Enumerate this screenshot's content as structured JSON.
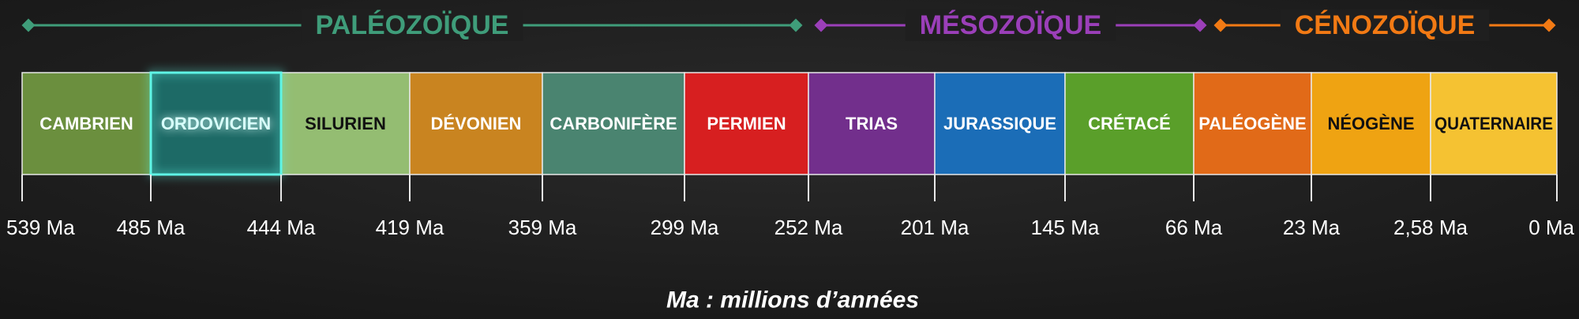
{
  "eras": [
    {
      "label": "PALÉOZOÏQUE"
    },
    {
      "label": "MÉSOZOÏQUE"
    },
    {
      "label": "CÉNOZOÏQUE"
    }
  ],
  "periods": [
    {
      "label": "CAMBRIEN"
    },
    {
      "label": "ORDOVICIEN"
    },
    {
      "label": "SILURIEN"
    },
    {
      "label": "DÉVONIEN"
    },
    {
      "label": "CARBONIFÈRE"
    },
    {
      "label": "PERMIEN"
    },
    {
      "label": "TRIAS"
    },
    {
      "label": "JURASSIQUE"
    },
    {
      "label": "CRÉTACÉ"
    },
    {
      "label": "PALÉOGÈNE"
    },
    {
      "label": "NÉOGÈNE"
    },
    {
      "label": "QUATERNAIRE"
    }
  ],
  "boundaries": [
    "539 Ma",
    "485 Ma",
    "444 Ma",
    "419 Ma",
    "359 Ma",
    "299 Ma",
    "252 Ma",
    "201 Ma",
    "145 Ma",
    "66 Ma",
    "23 Ma",
    "2,58 Ma",
    "0 Ma"
  ],
  "footnote": "Ma : millions d’années"
}
